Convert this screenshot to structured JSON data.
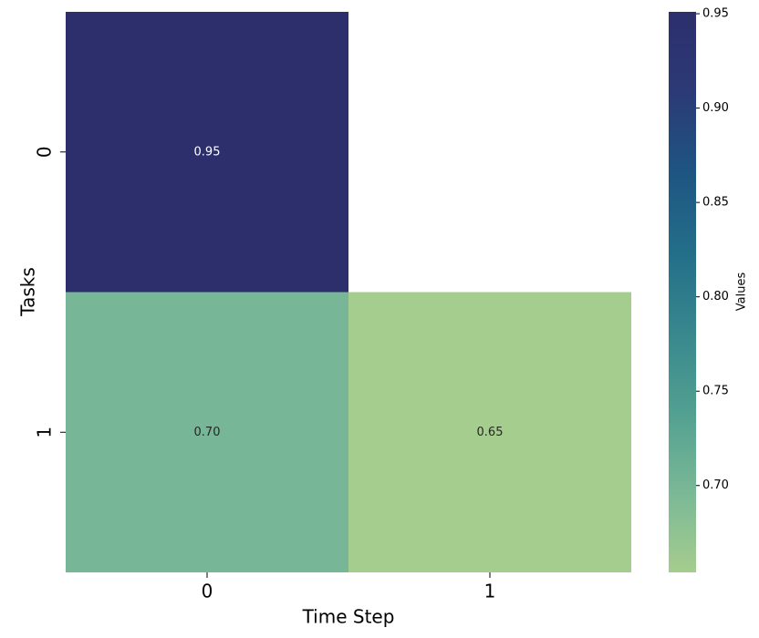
{
  "chart_data": {
    "type": "heatmap",
    "xlabel": "Time Step",
    "ylabel": "Tasks",
    "x_categories": [
      "0",
      "1"
    ],
    "y_categories": [
      "0",
      "1"
    ],
    "values": [
      [
        0.95,
        null
      ],
      [
        0.7,
        0.65
      ]
    ],
    "value_labels": [
      [
        "0.95",
        null
      ],
      [
        "0.70",
        "0.65"
      ]
    ],
    "colormap": [
      "#a5cd8e",
      "#7ab896",
      "#52a091",
      "#38878e",
      "#236e88",
      "#1e5582",
      "#2b3a76",
      "#2c2f6c"
    ],
    "clim": [
      0.654,
      0.951
    ],
    "colorbar_label": "Values",
    "colorbar_ticks": [
      {
        "value": 0.7,
        "label": "0.70"
      },
      0.75,
      {
        "value": 0.8,
        "label": "0.80"
      },
      0.85,
      {
        "value": 0.9,
        "label": "0.90"
      },
      0.95
    ]
  }
}
